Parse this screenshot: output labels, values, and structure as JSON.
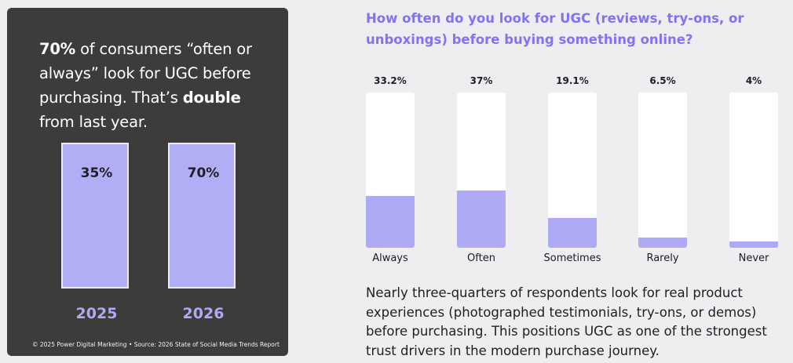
{
  "left_panel": {
    "headline_bold1": "70%",
    "headline_part1": " of consumers “often or always” look for UGC before purchasing. That’s ",
    "headline_bold2": "double",
    "headline_part2": " from last year.",
    "bars": [
      {
        "value_label": "35%",
        "year": "2025"
      },
      {
        "value_label": "70%",
        "year": "2026"
      }
    ],
    "footer": "© 2025 Power Digital Marketing • Source: 2026 State of Social Media Trends Report"
  },
  "question": "How often do you look for UGC (reviews, try-ons, or unboxings) before buying something online?",
  "chart_data": {
    "type": "bar",
    "title": "How often do you look for UGC (reviews, try-ons, or unboxings) before buying something online?",
    "categories": [
      "Always",
      "Often",
      "Sometimes",
      "Rarely",
      "Never"
    ],
    "values": [
      33.2,
      37,
      19.1,
      6.5,
      4
    ],
    "value_labels": [
      "33.2%",
      "37%",
      "19.1%",
      "6.5%",
      "4%"
    ],
    "ylim": [
      0,
      100
    ],
    "colors": {
      "fill": "#aeaaf5",
      "track": "#ffffff"
    }
  },
  "body_text": "Nearly three-quarters of respondents look for real product experiences (photographed testimonials, try-ons, or demos) before purchasing. This positions UGC as one of the strongest trust drivers in the modern purchase journey."
}
